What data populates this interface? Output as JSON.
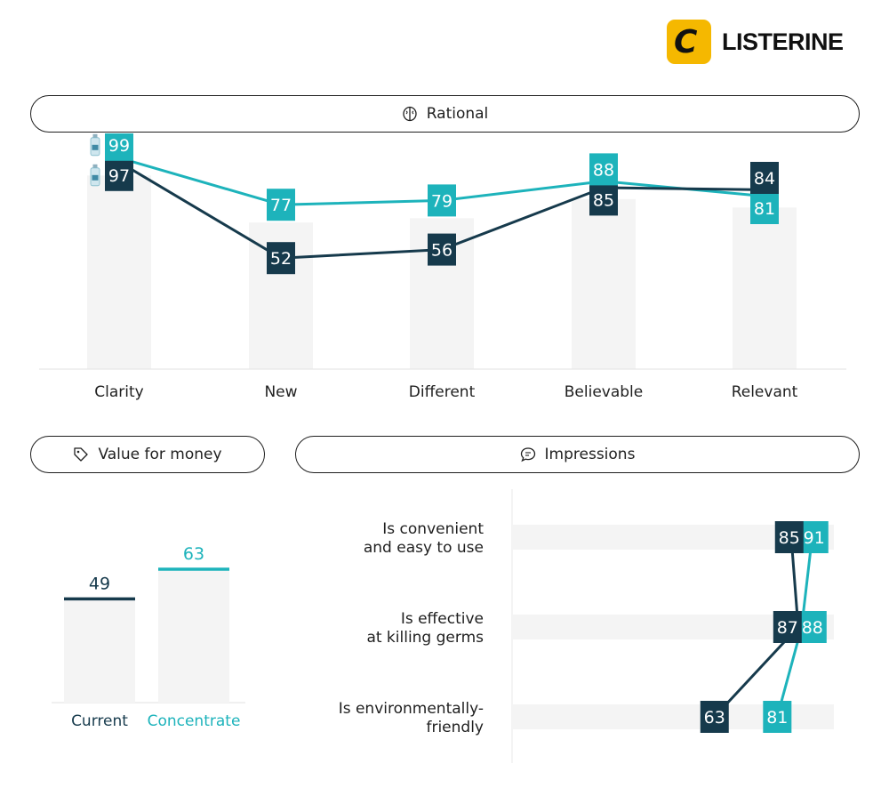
{
  "brand": {
    "name": "LISTERINE",
    "colors": {
      "accent": "#f5b800",
      "current": "#163a4c",
      "concentrate": "#1db3bb",
      "bar": "#f4f4f4"
    }
  },
  "sections": {
    "rational": "Rational",
    "value": "Value for money",
    "impressions": "Impressions"
  },
  "icons": {
    "rational": "brain-icon",
    "value": "price-tag-icon",
    "impressions": "chat-bubble-icon"
  },
  "chart_data": [
    {
      "type": "line",
      "title": "Rational",
      "categories": [
        "Clarity",
        "New",
        "Different",
        "Believable",
        "Relevant"
      ],
      "series": [
        {
          "key": "concentrate",
          "color": "#1db3bb",
          "values": [
            99,
            77,
            79,
            88,
            81
          ]
        },
        {
          "key": "current",
          "color": "#163a4c",
          "values": [
            97,
            52,
            56,
            85,
            84
          ]
        }
      ],
      "legend": "product-bottle-icons"
    },
    {
      "type": "bar",
      "title": "Value for money",
      "categories": [
        "Current",
        "Concentrate"
      ],
      "values": [
        49,
        63
      ],
      "colors": [
        "#163a4c",
        "#1db3bb"
      ]
    },
    {
      "type": "line",
      "orientation": "horizontal",
      "title": "Impressions",
      "categories": [
        "Is convenient and easy to use",
        "Is effective at killing germs",
        "Is environmentally-friendly"
      ],
      "category_lines": [
        [
          "Is convenient",
          "and easy to use"
        ],
        [
          "Is effective",
          "at killing germs"
        ],
        [
          "Is environmentally-",
          "friendly"
        ]
      ],
      "series": [
        {
          "key": "current",
          "color": "#163a4c",
          "values": [
            85,
            87,
            63
          ]
        },
        {
          "key": "concentrate",
          "color": "#1db3bb",
          "values": [
            91,
            88,
            81
          ]
        }
      ]
    }
  ]
}
